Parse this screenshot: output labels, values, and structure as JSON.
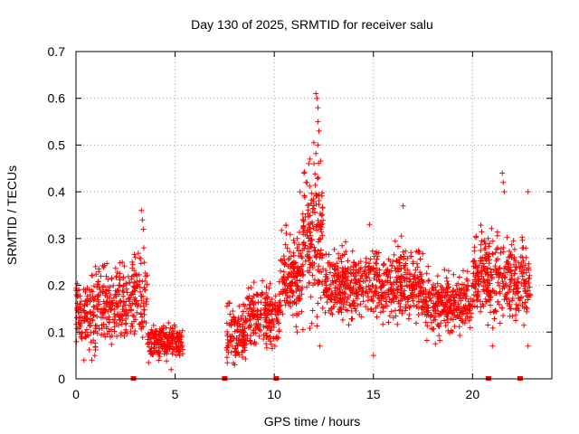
{
  "chart_data": {
    "type": "scatter",
    "title": "Day 130 of 2025, SRMTID for receiver salu",
    "xlabel": "GPS time / hours",
    "ylabel": "SRMTID / TECUs",
    "xlim": [
      0,
      24
    ],
    "ylim": [
      0,
      0.7
    ],
    "xticks": [
      0,
      5,
      10,
      15,
      20
    ],
    "yticks": [
      0,
      0.1,
      0.2,
      0.3,
      0.4,
      0.5,
      0.6,
      0.7
    ],
    "grid": true,
    "marker": "+",
    "color": "#ff0000",
    "seed": 130,
    "segments": [
      {
        "x0": 0.0,
        "x1": 1.0,
        "n": 120,
        "base": 0.14,
        "spread": 0.07,
        "low": 0.04,
        "high": 0.24
      },
      {
        "x0": 1.0,
        "x1": 2.8,
        "n": 200,
        "base": 0.16,
        "spread": 0.07,
        "low": 0.05,
        "high": 0.27
      },
      {
        "x0": 2.8,
        "x1": 3.6,
        "n": 90,
        "base": 0.18,
        "spread": 0.08,
        "low": 0.06,
        "high": 0.36
      },
      {
        "x0": 3.6,
        "x1": 5.4,
        "n": 200,
        "base": 0.08,
        "spread": 0.03,
        "low": 0.02,
        "high": 0.2
      },
      {
        "x0": 7.6,
        "x1": 8.6,
        "n": 120,
        "base": 0.1,
        "spread": 0.05,
        "low": 0.02,
        "high": 0.19
      },
      {
        "x0": 8.6,
        "x1": 10.3,
        "n": 200,
        "base": 0.14,
        "spread": 0.05,
        "low": 0.05,
        "high": 0.21
      },
      {
        "x0": 10.3,
        "x1": 11.4,
        "n": 160,
        "base": 0.22,
        "spread": 0.07,
        "low": 0.1,
        "high": 0.36
      },
      {
        "x0": 11.4,
        "x1": 12.5,
        "n": 180,
        "base": 0.3,
        "spread": 0.12,
        "low": 0.1,
        "high": 0.61
      },
      {
        "x0": 12.5,
        "x1": 15.0,
        "n": 300,
        "base": 0.2,
        "spread": 0.06,
        "low": 0.06,
        "high": 0.33
      },
      {
        "x0": 15.0,
        "x1": 17.5,
        "n": 300,
        "base": 0.2,
        "spread": 0.06,
        "low": 0.05,
        "high": 0.37
      },
      {
        "x0": 17.5,
        "x1": 20.0,
        "n": 300,
        "base": 0.16,
        "spread": 0.05,
        "low": 0.05,
        "high": 0.26
      },
      {
        "x0": 20.0,
        "x1": 21.6,
        "n": 200,
        "base": 0.22,
        "spread": 0.07,
        "low": 0.06,
        "high": 0.44
      },
      {
        "x0": 21.6,
        "x1": 22.9,
        "n": 160,
        "base": 0.21,
        "spread": 0.07,
        "low": 0.08,
        "high": 0.4
      }
    ],
    "peaks": [
      {
        "x": 3.3,
        "y": 0.36
      },
      {
        "x": 3.35,
        "y": 0.34
      },
      {
        "x": 3.4,
        "y": 0.32
      },
      {
        "x": 12.1,
        "y": 0.61
      },
      {
        "x": 12.15,
        "y": 0.6
      },
      {
        "x": 12.2,
        "y": 0.58
      },
      {
        "x": 12.2,
        "y": 0.55
      },
      {
        "x": 12.25,
        "y": 0.53
      },
      {
        "x": 12.2,
        "y": 0.5
      },
      {
        "x": 11.8,
        "y": 0.47
      },
      {
        "x": 12.0,
        "y": 0.46
      },
      {
        "x": 11.5,
        "y": 0.44
      },
      {
        "x": 11.6,
        "y": 0.42
      },
      {
        "x": 11.3,
        "y": 0.4
      },
      {
        "x": 21.5,
        "y": 0.44
      },
      {
        "x": 21.55,
        "y": 0.42
      },
      {
        "x": 21.6,
        "y": 0.4
      },
      {
        "x": 22.8,
        "y": 0.4
      },
      {
        "x": 16.5,
        "y": 0.37
      },
      {
        "x": 14.8,
        "y": 0.33
      },
      {
        "x": 0.4,
        "y": 0.04
      },
      {
        "x": 4.8,
        "y": 0.02
      },
      {
        "x": 8.0,
        "y": 0.03
      },
      {
        "x": 12.3,
        "y": 0.07
      },
      {
        "x": 15.0,
        "y": 0.05
      },
      {
        "x": 21.0,
        "y": 0.07
      },
      {
        "x": 22.8,
        "y": 0.07
      }
    ],
    "zero_marks": [
      2.9,
      7.5,
      10.1,
      20.8,
      22.4
    ]
  }
}
